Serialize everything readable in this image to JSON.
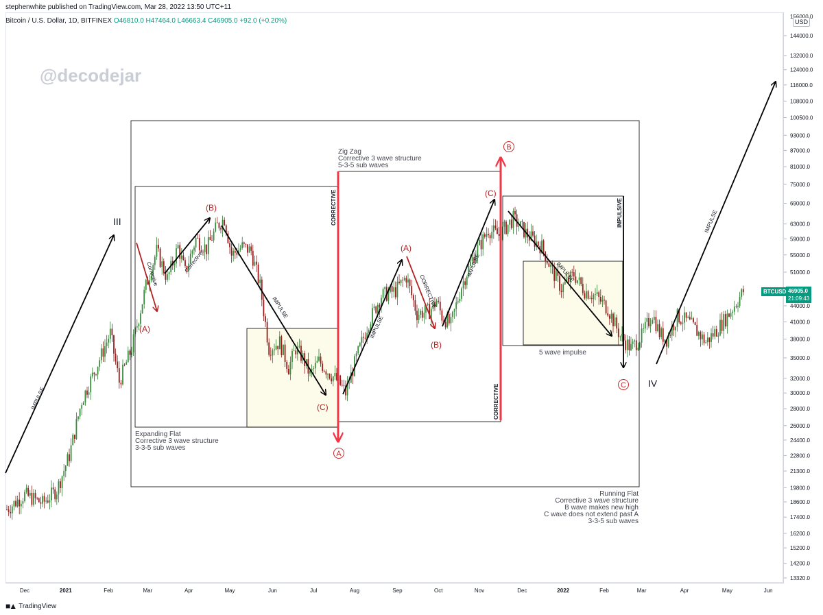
{
  "header": {
    "publisher": "stephenwhite published on TradingView.com, Mar 28, 2022 13:50 UTC+11",
    "symbol": "Bitcoin / U.S. Dollar, 1D, BITFINEX",
    "ohlc": "O46810.0  H47464.0  L46663.4  C46905.0  +92.0 (+0.20%)"
  },
  "watermark": "@decodejar",
  "footer_brand": "TradingView",
  "price_axis": {
    "currency": "USD",
    "ticker_tag": "BTCUSD",
    "last_price": "46905.0",
    "countdown": "21:09:43",
    "top_partial_label": "156000.0"
  },
  "chart_data": {
    "type": "candlestick",
    "scale": "log",
    "ylim": [
      13000,
      157000
    ],
    "y_ticks": [
      144000,
      132000,
      124000,
      116000,
      108000,
      100500,
      93000,
      87000,
      81000,
      75000,
      69000,
      63000,
      59000,
      55000,
      51000,
      47000,
      44000,
      41000,
      38000,
      35000,
      32000,
      30000,
      28000,
      26000,
      24400,
      22800,
      21300,
      19800,
      18600,
      17400,
      16200,
      15200,
      14200,
      13320
    ],
    "x_ticks": [
      "Dec",
      "2021",
      "Feb",
      "Mar",
      "Apr",
      "May",
      "Jun",
      "Jul",
      "Aug",
      "Sep",
      "Oct",
      "Nov",
      "Dec",
      "2022",
      "Feb",
      "Mar",
      "Apr",
      "May",
      "Jun"
    ],
    "x_ticks_bold": [
      "2021",
      "2022"
    ],
    "colors": {
      "up": "#26a69a",
      "up_body": "#2e7d32",
      "down": "#b71c1c",
      "box_fill": "#fdfbe9",
      "red_arrow": "#f23645",
      "label_red": "#b22222"
    },
    "price_path_days": [
      0,
      10,
      20,
      28,
      35,
      42,
      50,
      58,
      63,
      70,
      78,
      84,
      90,
      96,
      100,
      106,
      112,
      118,
      122,
      126,
      132,
      137,
      142,
      147,
      153,
      158,
      162,
      166,
      170,
      175,
      180,
      186,
      190,
      196,
      203,
      210,
      218,
      224,
      230,
      237,
      241,
      244,
      249,
      255,
      262,
      266,
      270,
      276,
      284,
      292,
      300,
      305,
      311,
      318,
      324,
      330,
      337,
      344,
      350,
      356,
      362,
      366,
      370,
      376,
      382,
      388
    ],
    "price_path_values": [
      18000,
      19200,
      18500,
      19600,
      22800,
      29000,
      33500,
      39000,
      31500,
      36500,
      48000,
      56000,
      49500,
      57000,
      51000,
      59000,
      56500,
      62500,
      64500,
      55000,
      57000,
      56000,
      48000,
      36500,
      37500,
      33500,
      36500,
      35000,
      32500,
      34500,
      33000,
      31500,
      30000,
      35000,
      41000,
      46000,
      47000,
      50000,
      42500,
      43000,
      45000,
      42000,
      40500,
      48000,
      55000,
      58000,
      61500,
      60000,
      64500,
      60000,
      57000,
      52000,
      47500,
      50500,
      47000,
      46000,
      43500,
      38500,
      36500,
      38500,
      42500,
      39000,
      38000,
      42000,
      41000,
      39000
    ],
    "price_path_tail_days": [
      392,
      398,
      405,
      413
    ],
    "price_path_tail_values": [
      37500,
      39500,
      42500,
      46905
    ],
    "last": {
      "open": 46810.0,
      "high": 47464.0,
      "low": 46663.4,
      "close": 46905.0,
      "change": 92.0,
      "change_pct": 0.2
    }
  },
  "annotations": {
    "impulse": "IMPULSE",
    "corrective": "CORRECTIVE",
    "corrective_small": "Corrective",
    "impulsive": "IMPULSIVE",
    "wave_III": "III",
    "wave_IV": "IV",
    "a": "(A)",
    "b": "(B)",
    "c": "(C)",
    "circ_a": "A",
    "circ_b": "B",
    "circ_c": "C",
    "expanding_flat": [
      "Expanding Flat",
      "Corrective 3 wave structure",
      "3-3-5 sub waves"
    ],
    "zig_zag": [
      "Zig Zag",
      "Corrective 3 wave structure",
      "5-3-5 sub waves"
    ],
    "running_flat": [
      "Running Flat",
      "Corrective 3 wave structure",
      "B wave makes new high",
      "C wave does not extend past A",
      "3-3-5 sub waves"
    ],
    "five_wave": "5 wave impulse"
  }
}
